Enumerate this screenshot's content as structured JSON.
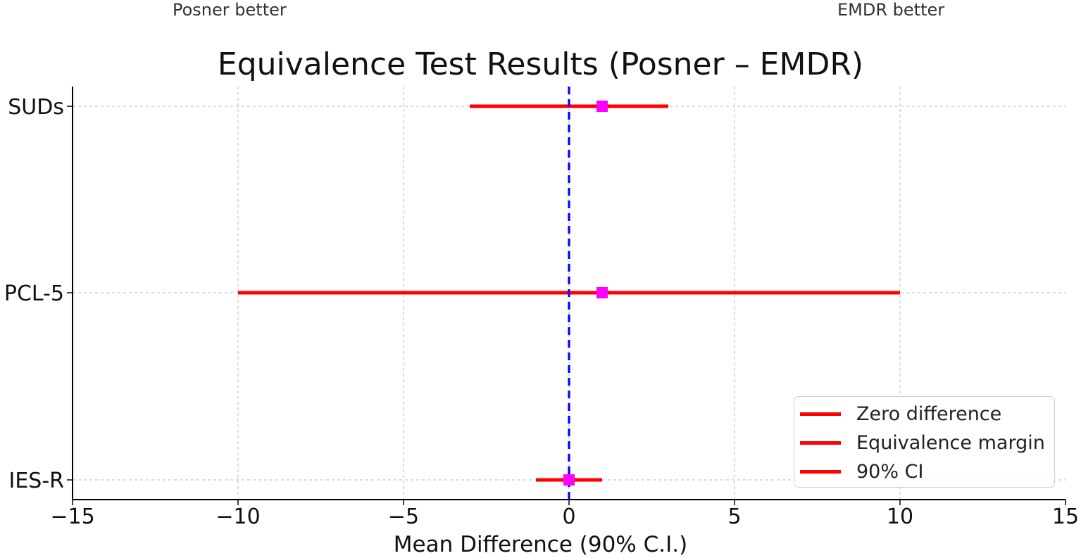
{
  "chart_data": {
    "type": "forest",
    "title": "Equivalence Test Results (Posner – EMDR)",
    "xlabel": "Mean Difference (90% C.I.)",
    "ylabel": "",
    "xlim": [
      -15,
      15
    ],
    "xticks": [
      -15,
      -10,
      -5,
      0,
      5,
      10,
      15
    ],
    "xtick_labels": [
      "−15",
      "−10",
      "−5",
      "0",
      "5",
      "10",
      "15"
    ],
    "grid": true,
    "annotations": {
      "left": "Posner better",
      "right": "EMDR better"
    },
    "reference_line": {
      "x": 0,
      "style": "dashed",
      "color": "#0000ff"
    },
    "rows": [
      {
        "label": "SUDs",
        "estimate": 1,
        "ci_low": -3,
        "ci_high": 3
      },
      {
        "label": "PCL-5",
        "estimate": 1,
        "ci_low": -10,
        "ci_high": 10
      },
      {
        "label": "IES-R",
        "estimate": 0,
        "ci_low": -1,
        "ci_high": 1
      }
    ],
    "colors": {
      "ci": "#ff0000",
      "estimate": "#ff00ff",
      "grid": "#c8c8c8",
      "axis": "#000000"
    },
    "legend": {
      "position": "bottom-right",
      "entries": [
        "Zero difference",
        "Equivalence margin",
        "90% CI"
      ]
    }
  }
}
